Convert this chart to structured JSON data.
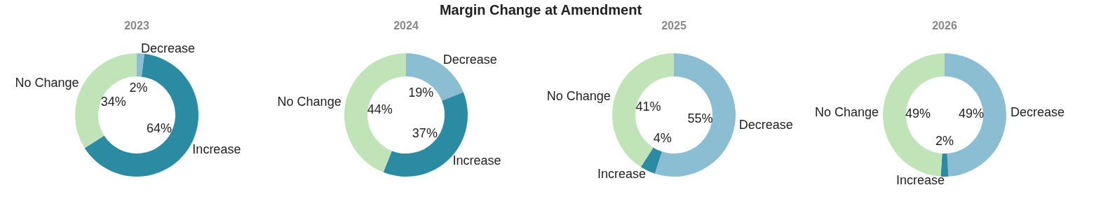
{
  "chart_data": [
    {
      "type": "donut",
      "title": "2023",
      "annotations": [
        "Margin Change at Amendment"
      ],
      "categories": [
        "Decrease",
        "Increase",
        "No Change"
      ],
      "values": [
        2,
        64,
        34
      ],
      "value_labels": [
        "2%",
        "64%",
        "34%"
      ],
      "colors": [
        "#8bbdd3",
        "#2b8ba3",
        "#c0e3b8"
      ]
    },
    {
      "type": "donut",
      "title": "2024",
      "categories": [
        "Decrease",
        "Increase",
        "No Change"
      ],
      "values": [
        19,
        37,
        44
      ],
      "value_labels": [
        "19%",
        "37%",
        "44%"
      ],
      "colors": [
        "#8bbdd3",
        "#2b8ba3",
        "#c0e3b8"
      ]
    },
    {
      "type": "donut",
      "title": "2025",
      "categories": [
        "Decrease",
        "Increase",
        "No Change"
      ],
      "values": [
        55,
        4,
        41
      ],
      "value_labels": [
        "55%",
        "4%",
        "41%"
      ],
      "colors": [
        "#8bbdd3",
        "#2b8ba3",
        "#c0e3b8"
      ]
    },
    {
      "type": "donut",
      "title": "2026",
      "categories": [
        "Decrease",
        "Increase",
        "No Change"
      ],
      "values": [
        49,
        2,
        49
      ],
      "value_labels": [
        "49%",
        "2%",
        "49%"
      ],
      "colors": [
        "#8bbdd3",
        "#2b8ba3",
        "#c0e3b8"
      ]
    }
  ]
}
